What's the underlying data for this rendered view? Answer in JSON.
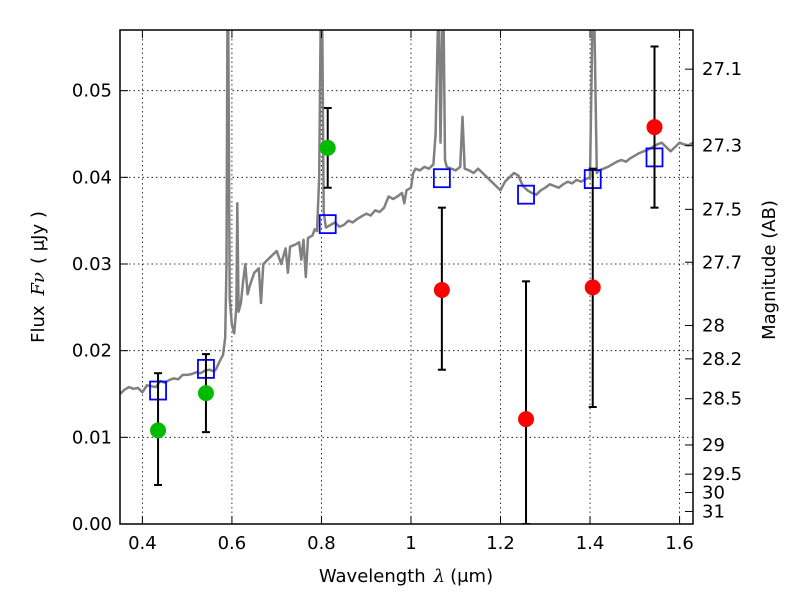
{
  "chart_data": {
    "type": "scatter",
    "xlabel_main": "Wavelength",
    "xlabel_symbol": "λ",
    "xlabel_unit": "(μm)",
    "ylabel_main": "Flux",
    "ylabel_symbol": "Fν",
    "ylabel_unit": "( μJy )",
    "ylabel_right": "Magnitude (AB)",
    "xlim": [
      0.35,
      1.63
    ],
    "ylim": [
      0.0,
      0.057
    ],
    "grid": true,
    "x_ticks": [
      {
        "value": 0.4,
        "label": "0.4"
      },
      {
        "value": 0.6,
        "label": "0.6"
      },
      {
        "value": 0.8,
        "label": "0.8"
      },
      {
        "value": 1.0,
        "label": "1"
      },
      {
        "value": 1.2,
        "label": "1.2"
      },
      {
        "value": 1.4,
        "label": "1.4"
      },
      {
        "value": 1.6,
        "label": "1.6"
      }
    ],
    "y_ticks": [
      {
        "value": 0.0,
        "label": "0.00"
      },
      {
        "value": 0.01,
        "label": "0.01"
      },
      {
        "value": 0.02,
        "label": "0.02"
      },
      {
        "value": 0.03,
        "label": "0.03"
      },
      {
        "value": 0.04,
        "label": "0.04"
      },
      {
        "value": 0.05,
        "label": "0.05"
      }
    ],
    "right_ticks": [
      {
        "mag": 27.1,
        "label": "27.1"
      },
      {
        "mag": 27.3,
        "label": "27.3"
      },
      {
        "mag": 27.5,
        "label": "27.5"
      },
      {
        "mag": 27.7,
        "label": "27.7"
      },
      {
        "mag": 28.0,
        "label": "28"
      },
      {
        "mag": 28.2,
        "label": "28.2"
      },
      {
        "mag": 28.5,
        "label": "28.5"
      },
      {
        "mag": 29.0,
        "label": "29"
      },
      {
        "mag": 29.5,
        "label": "29.5"
      },
      {
        "mag": 30.0,
        "label": "30"
      },
      {
        "mag": 31.0,
        "label": "31"
      }
    ],
    "series": [
      {
        "kind": "spectrum",
        "color": "#808080",
        "points": [
          [
            0.35,
            0.015
          ],
          [
            0.36,
            0.0155
          ],
          [
            0.37,
            0.0158
          ],
          [
            0.38,
            0.0156
          ],
          [
            0.39,
            0.0157
          ],
          [
            0.4,
            0.0152
          ],
          [
            0.41,
            0.016
          ],
          [
            0.42,
            0.0159
          ],
          [
            0.43,
            0.0158
          ],
          [
            0.44,
            0.0165
          ],
          [
            0.45,
            0.0163
          ],
          [
            0.46,
            0.0166
          ],
          [
            0.47,
            0.0168
          ],
          [
            0.48,
            0.0167
          ],
          [
            0.49,
            0.0172
          ],
          [
            0.5,
            0.0172
          ],
          [
            0.51,
            0.0173
          ],
          [
            0.52,
            0.0175
          ],
          [
            0.53,
            0.0174
          ],
          [
            0.54,
            0.0177
          ],
          [
            0.55,
            0.0178
          ],
          [
            0.56,
            0.0176
          ],
          [
            0.565,
            0.0179
          ],
          [
            0.57,
            0.0185
          ],
          [
            0.575,
            0.019
          ],
          [
            0.58,
            0.0195
          ],
          [
            0.585,
            0.0215
          ],
          [
            0.588,
            0.03
          ],
          [
            0.59,
            0.057
          ],
          [
            0.592,
            0.057
          ],
          [
            0.595,
            0.026
          ],
          [
            0.6,
            0.023
          ],
          [
            0.605,
            0.022
          ],
          [
            0.61,
            0.025
          ],
          [
            0.612,
            0.037
          ],
          [
            0.615,
            0.0245
          ],
          [
            0.62,
            0.0255
          ],
          [
            0.625,
            0.028
          ],
          [
            0.63,
            0.03
          ],
          [
            0.635,
            0.0265
          ],
          [
            0.64,
            0.0275
          ],
          [
            0.65,
            0.029
          ],
          [
            0.66,
            0.0295
          ],
          [
            0.665,
            0.0255
          ],
          [
            0.67,
            0.03
          ],
          [
            0.68,
            0.0305
          ],
          [
            0.69,
            0.031
          ],
          [
            0.7,
            0.0315
          ],
          [
            0.71,
            0.03
          ],
          [
            0.72,
            0.0318
          ],
          [
            0.725,
            0.029
          ],
          [
            0.73,
            0.032
          ],
          [
            0.74,
            0.0322
          ],
          [
            0.75,
            0.0325
          ],
          [
            0.755,
            0.0305
          ],
          [
            0.76,
            0.0328
          ],
          [
            0.765,
            0.0285
          ],
          [
            0.77,
            0.033
          ],
          [
            0.78,
            0.0333
          ],
          [
            0.785,
            0.034
          ],
          [
            0.79,
            0.0338
          ],
          [
            0.795,
            0.04
          ],
          [
            0.798,
            0.057
          ],
          [
            0.802,
            0.057
          ],
          [
            0.805,
            0.036
          ],
          [
            0.81,
            0.0342
          ],
          [
            0.82,
            0.0345
          ],
          [
            0.83,
            0.0348
          ],
          [
            0.84,
            0.0343
          ],
          [
            0.85,
            0.0345
          ],
          [
            0.86,
            0.035
          ],
          [
            0.87,
            0.0348
          ],
          [
            0.88,
            0.0352
          ],
          [
            0.89,
            0.0355
          ],
          [
            0.9,
            0.0358
          ],
          [
            0.91,
            0.0356
          ],
          [
            0.92,
            0.0362
          ],
          [
            0.93,
            0.036
          ],
          [
            0.94,
            0.0365
          ],
          [
            0.95,
            0.0378
          ],
          [
            0.96,
            0.0375
          ],
          [
            0.97,
            0.0378
          ],
          [
            0.98,
            0.0382
          ],
          [
            0.985,
            0.037
          ],
          [
            0.99,
            0.0385
          ],
          [
            1.0,
            0.0388
          ],
          [
            1.005,
            0.0405
          ],
          [
            1.01,
            0.041
          ],
          [
            1.02,
            0.0408
          ],
          [
            1.03,
            0.0412
          ],
          [
            1.04,
            0.041
          ],
          [
            1.05,
            0.0415
          ],
          [
            1.055,
            0.045
          ],
          [
            1.06,
            0.057
          ],
          [
            1.063,
            0.057
          ],
          [
            1.066,
            0.044
          ],
          [
            1.07,
            0.057
          ],
          [
            1.073,
            0.057
          ],
          [
            1.076,
            0.042
          ],
          [
            1.08,
            0.0412
          ],
          [
            1.09,
            0.041
          ],
          [
            1.1,
            0.0408
          ],
          [
            1.11,
            0.0412
          ],
          [
            1.115,
            0.047
          ],
          [
            1.12,
            0.041
          ],
          [
            1.13,
            0.0408
          ],
          [
            1.14,
            0.0405
          ],
          [
            1.15,
            0.041
          ],
          [
            1.16,
            0.0405
          ],
          [
            1.17,
            0.04
          ],
          [
            1.18,
            0.0395
          ],
          [
            1.19,
            0.039
          ],
          [
            1.2,
            0.0385
          ],
          [
            1.21,
            0.0395
          ],
          [
            1.22,
            0.04
          ],
          [
            1.23,
            0.0405
          ],
          [
            1.24,
            0.0402
          ],
          [
            1.25,
            0.039
          ],
          [
            1.26,
            0.0385
          ],
          [
            1.27,
            0.0382
          ],
          [
            1.28,
            0.038
          ],
          [
            1.29,
            0.0385
          ],
          [
            1.3,
            0.0388
          ],
          [
            1.31,
            0.0392
          ],
          [
            1.32,
            0.039
          ],
          [
            1.33,
            0.0388
          ],
          [
            1.34,
            0.0392
          ],
          [
            1.35,
            0.0395
          ],
          [
            1.36,
            0.0393
          ],
          [
            1.37,
            0.0397
          ],
          [
            1.38,
            0.0395
          ],
          [
            1.39,
            0.0398
          ],
          [
            1.4,
            0.04
          ],
          [
            1.405,
            0.057
          ],
          [
            1.41,
            0.057
          ],
          [
            1.415,
            0.0405
          ],
          [
            1.42,
            0.0408
          ],
          [
            1.43,
            0.041
          ],
          [
            1.44,
            0.0412
          ],
          [
            1.45,
            0.0415
          ],
          [
            1.46,
            0.0418
          ],
          [
            1.47,
            0.042
          ],
          [
            1.48,
            0.0418
          ],
          [
            1.49,
            0.0422
          ],
          [
            1.5,
            0.0425
          ],
          [
            1.51,
            0.0428
          ],
          [
            1.52,
            0.043
          ],
          [
            1.53,
            0.0432
          ],
          [
            1.54,
            0.0435
          ],
          [
            1.55,
            0.0438
          ],
          [
            1.56,
            0.044
          ],
          [
            1.57,
            0.0435
          ],
          [
            1.58,
            0.043
          ],
          [
            1.59,
            0.0435
          ],
          [
            1.6,
            0.044
          ],
          [
            1.61,
            0.0438
          ],
          [
            1.62,
            0.0437
          ],
          [
            1.63,
            0.044
          ]
        ]
      },
      {
        "kind": "model_photometry",
        "color": "#0000ff",
        "marker": "open-square",
        "points": [
          [
            0.435,
            0.0154
          ],
          [
            0.542,
            0.0179
          ],
          [
            0.814,
            0.0346
          ],
          [
            1.069,
            0.0399
          ],
          [
            1.257,
            0.038
          ],
          [
            1.406,
            0.0398
          ],
          [
            1.544,
            0.0423
          ]
        ]
      },
      {
        "kind": "detections",
        "color": "#00bb00",
        "marker": "filled-circle",
        "points": [
          {
            "x": 0.435,
            "y": 0.0108,
            "err_lo": 0.0045,
            "err_hi": 0.0174
          },
          {
            "x": 0.542,
            "y": 0.0151,
            "err_lo": 0.0106,
            "err_hi": 0.0196
          },
          {
            "x": 0.814,
            "y": 0.0434,
            "err_lo": 0.0388,
            "err_hi": 0.048
          }
        ]
      },
      {
        "kind": "upper_limits",
        "color": "#ff0000",
        "marker": "filled-circle",
        "points": [
          {
            "x": 1.069,
            "y": 0.027,
            "err_lo": 0.0178,
            "err_hi": 0.0365
          },
          {
            "x": 1.257,
            "y": 0.0121,
            "err_lo": 0.0,
            "err_hi": 0.028
          },
          {
            "x": 1.406,
            "y": 0.0273,
            "err_lo": 0.0135,
            "err_hi": 0.041
          },
          {
            "x": 1.544,
            "y": 0.0458,
            "err_lo": 0.0365,
            "err_hi": 0.0551
          }
        ]
      }
    ]
  }
}
